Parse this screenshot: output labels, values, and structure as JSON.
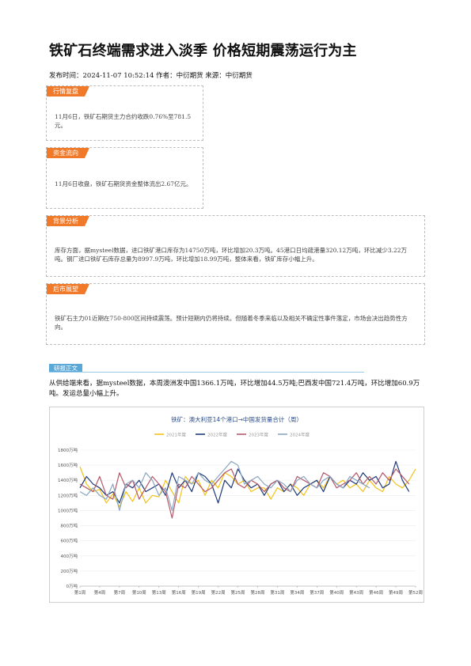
{
  "article": {
    "title": "铁矿石终端需求进入淡季 价格短期震荡运行为主",
    "meta": "发布时间：2024-11-07 10:52:14 作者：中衍期货 来源：中衍期货"
  },
  "boxes": [
    {
      "tag": "行情复盘",
      "text": "11月6日，铁矿石期货主力合约收跌0.76%至781.5元。"
    },
    {
      "tag": "资金流向",
      "text": "11月6日收盘，铁矿石期货资金整体流出2.67亿元。"
    },
    {
      "tag": "背景分析",
      "text": "库存方面，据mysteel数据，进口铁矿港口库存为14750万吨，环比增加20.3万吨。45港口日均疏港量320.12万吨，环比减少3.22万吨。钢厂进口铁矿石库存总量为8997.9万吨，环比增加18.99万吨，整体来看，铁矿库存小幅上升。"
    },
    {
      "tag": "后市展望",
      "text": "铁矿石主力01近期在750-800区间持续震荡。预计短期内仍将持续。但随着冬季来临以及相关不确定性事件落定，市场会决出趋势性方向。"
    }
  ],
  "section": {
    "label": "研报正文",
    "paragraph": "从供给端来看，据mysteel数据，本周澳洲发中国1366.1万吨，环比增加44.5万吨;巴西发中国721.4万吨，环比增加60.9万吨。发运总量小幅上升。"
  },
  "chart_data": {
    "type": "line",
    "title": "铁矿：澳大利亚14个港口→中国发货量合计（周）",
    "ylim": [
      0,
      1800
    ],
    "yticks": [
      "0万吨",
      "200万吨",
      "400万吨",
      "600万吨",
      "800万吨",
      "1000万吨",
      "1200万吨",
      "1400万吨",
      "1600万吨",
      "1800万吨"
    ],
    "x_labels": [
      "第1周",
      "第4周",
      "第7周",
      "第10周",
      "第13周",
      "第16周",
      "第19周",
      "第22周",
      "第25周",
      "第28周",
      "第31周",
      "第34周",
      "第37周",
      "第40周",
      "第43周",
      "第46周",
      "第49周",
      "第52周"
    ],
    "legend_position": "top",
    "series": [
      {
        "name": "2021年度",
        "color": "#f2c21b",
        "values": [
          1580,
          1350,
          1250,
          1280,
          1100,
          1220,
          1050,
          1250,
          1120,
          1300,
          1100,
          1200,
          1180,
          1400,
          1250,
          1100,
          1450,
          1350,
          1400,
          1200,
          1400,
          1300,
          1500,
          1450,
          1350,
          1400,
          1250,
          1300,
          1300,
          1150,
          1300,
          1250,
          1350,
          1300,
          1200,
          1350,
          1400,
          1300,
          1450,
          1350,
          1400,
          1300,
          1350,
          1250,
          1400,
          1300,
          1250,
          1450,
          1350,
          1300,
          1400,
          1550
        ]
      },
      {
        "name": "2022年度",
        "color": "#1f3a7a",
        "values": [
          1300,
          1450,
          1350,
          1300,
          1200,
          1250,
          1100,
          1350,
          1300,
          1400,
          1250,
          1300,
          1350,
          1200,
          1500,
          1300,
          1400,
          1250,
          1500,
          1450,
          1350,
          1100,
          1400,
          1300,
          1550,
          1400,
          1300,
          1350,
          1200,
          1350,
          1400,
          1250,
          1350,
          1200,
          1300,
          1350,
          1400,
          1250,
          1450,
          1350,
          1300,
          1400,
          1350,
          1500,
          1400,
          1450,
          1300,
          1350,
          1650,
          1400,
          1250
        ]
      },
      {
        "name": "2023年度",
        "color": "#b5586a",
        "values": [
          1350,
          1300,
          1250,
          1450,
          1200,
          1150,
          1500,
          1300,
          1400,
          1150,
          1300,
          1450,
          1350,
          1250,
          900,
          1350,
          1300,
          1450,
          1350,
          1250,
          1300,
          1400,
          1500,
          1550,
          1350,
          1300,
          1400,
          1350,
          1250,
          1350,
          1400,
          1300,
          1250,
          1450,
          1400,
          1350,
          1300,
          1500,
          1450,
          1300,
          1350,
          1400,
          1500,
          1350,
          1450,
          1350,
          1500,
          1400,
          1550,
          1450,
          1350
        ]
      },
      {
        "name": "2024年度",
        "color": "#8aa6c1",
        "values": [
          1250,
          1200,
          1300,
          1200,
          1150,
          1350,
          1000,
          1350,
          1400,
          1300,
          1500,
          1400,
          1200,
          1300,
          1000,
          1450,
          1400,
          1350,
          1500,
          1400,
          1350,
          1450,
          1550,
          1650,
          1600,
          1350,
          1400,
          1450,
          1350,
          1300,
          1400,
          1350,
          1250,
          1400,
          1450,
          1350,
          1300,
          1400,
          1450,
          1350,
          1300,
          1450,
          1400,
          1350,
          1300
        ]
      }
    ]
  }
}
